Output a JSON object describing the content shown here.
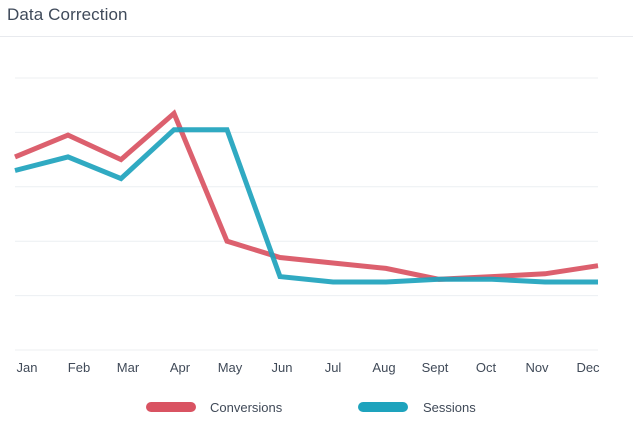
{
  "header": {
    "title": "Data Correction"
  },
  "chart_data": {
    "type": "line",
    "title": "Data Correction",
    "categories": [
      "Jan",
      "Feb",
      "Mar",
      "Apr",
      "May",
      "Jun",
      "Jul",
      "Aug",
      "Sept",
      "Oct",
      "Nov",
      "Dec"
    ],
    "ylim": [
      0,
      100
    ],
    "grid": true,
    "legend": "bottom",
    "series": [
      {
        "name": "Conversions",
        "color": "#d95362",
        "values": [
          71,
          79,
          70,
          87,
          40,
          34,
          32,
          30,
          26,
          27,
          28,
          31
        ]
      },
      {
        "name": "Sessions",
        "color": "#1ea3bd",
        "values": [
          66,
          71,
          63,
          81,
          81,
          27,
          25,
          25,
          26,
          26,
          25,
          25
        ]
      }
    ]
  }
}
